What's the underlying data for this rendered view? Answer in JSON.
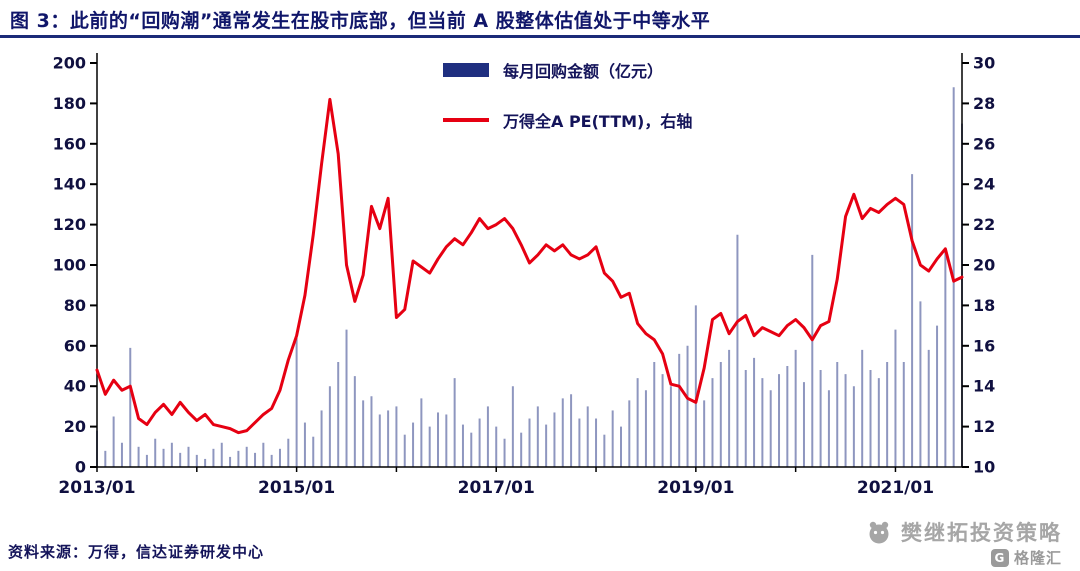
{
  "header": {
    "title": "图 3：此前的“回购潮”通常发生在股市底部，但当前 A 股整体估值处于中等水平"
  },
  "footer": {
    "source": "资料来源：万得，信达证券研发中心"
  },
  "watermark": {
    "strategy_name": "樊继拓投资策略",
    "logo_text": "格隆汇",
    "logo_letter": "G"
  },
  "chart_data": {
    "type": "combo",
    "x_start": "2013/01",
    "x_unit": "month",
    "x_tick_labels": [
      "2013/01",
      "2015/01",
      "2017/01",
      "2019/01",
      "2021/01"
    ],
    "x_tick_positions": [
      0,
      24,
      48,
      72,
      96
    ],
    "left_axis": {
      "min": 0,
      "max": 200,
      "step": 20
    },
    "right_axis": {
      "min": 10,
      "max": 30,
      "step": 2
    },
    "grid": false,
    "legend_position": "top-center",
    "series": [
      {
        "name": "每月回购金额（亿元）",
        "type": "bar",
        "axis": "left",
        "color": "#1f2f80",
        "values": [
          18,
          8,
          25,
          12,
          59,
          10,
          6,
          14,
          9,
          12,
          7,
          10,
          6,
          4,
          9,
          12,
          5,
          8,
          10,
          7,
          12,
          6,
          9,
          14,
          64,
          22,
          15,
          28,
          40,
          52,
          68,
          45,
          33,
          35,
          26,
          28,
          30,
          16,
          22,
          34,
          20,
          27,
          26,
          44,
          21,
          17,
          24,
          30,
          20,
          14,
          40,
          17,
          24,
          30,
          21,
          27,
          34,
          36,
          24,
          30,
          24,
          16,
          28,
          20,
          33,
          44,
          38,
          52,
          46,
          40,
          56,
          60,
          80,
          33,
          44,
          52,
          58,
          115,
          48,
          54,
          44,
          38,
          46,
          50,
          58,
          42,
          105,
          48,
          38,
          52,
          46,
          40,
          58,
          48,
          44,
          52,
          68,
          52,
          145,
          82,
          58,
          70,
          108,
          188,
          170
        ]
      },
      {
        "name": "万得全A PE(TTM)，右轴",
        "type": "line",
        "axis": "right",
        "color": "#e60012",
        "values": [
          14.8,
          13.6,
          14.3,
          13.8,
          14.0,
          12.4,
          12.1,
          12.7,
          13.1,
          12.6,
          13.2,
          12.7,
          12.3,
          12.6,
          12.1,
          12.0,
          11.9,
          11.7,
          11.8,
          12.2,
          12.6,
          12.9,
          13.8,
          15.3,
          16.5,
          18.5,
          21.5,
          25.0,
          28.2,
          25.5,
          20.0,
          18.2,
          19.5,
          22.9,
          21.8,
          23.3,
          17.4,
          17.8,
          20.2,
          19.9,
          19.6,
          20.3,
          20.9,
          21.3,
          21.0,
          21.6,
          22.3,
          21.8,
          22.0,
          22.3,
          21.8,
          21.0,
          20.1,
          20.5,
          21.0,
          20.7,
          21.0,
          20.5,
          20.3,
          20.5,
          20.9,
          19.6,
          19.2,
          18.4,
          18.6,
          17.1,
          16.6,
          16.3,
          15.6,
          14.1,
          14.0,
          13.4,
          13.2,
          14.9,
          17.3,
          17.6,
          16.6,
          17.2,
          17.5,
          16.5,
          16.9,
          16.7,
          16.5,
          17.0,
          17.3,
          16.9,
          16.3,
          17.0,
          17.2,
          19.3,
          22.4,
          23.5,
          22.3,
          22.8,
          22.6,
          23.0,
          23.3,
          23.0,
          21.2,
          20.0,
          19.7,
          20.3,
          20.8,
          19.2,
          19.4
        ]
      }
    ]
  }
}
